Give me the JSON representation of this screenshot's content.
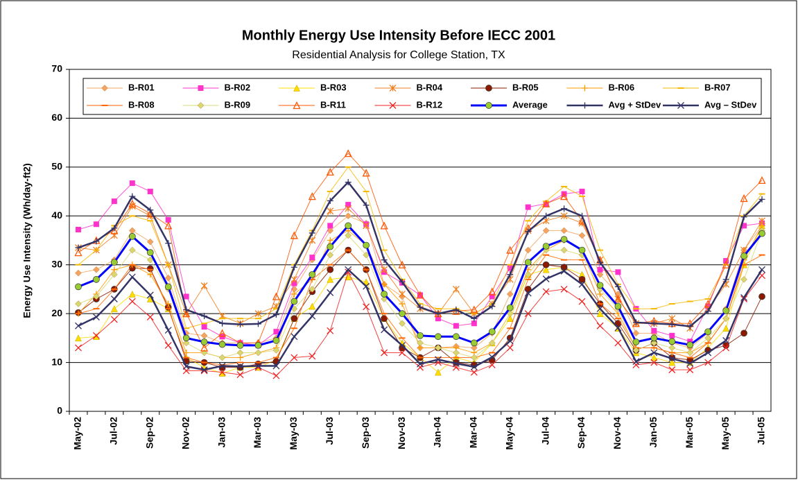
{
  "chart_data": {
    "type": "line",
    "title": "Monthly Energy Use Intensity Before  IECC 2001",
    "subtitle": "Residential Analysis for College Station, TX",
    "y_label": "Energy Use Intensity (Wh/day-ft2)",
    "categories": [
      "May-02",
      null,
      "Jul-02",
      null,
      "Sep-02",
      null,
      "Nov-02",
      null,
      "Jan-03",
      null,
      "Mar-03",
      null,
      "May-03",
      null,
      "Jul-03",
      null,
      "Sep-03",
      null,
      "Nov-03",
      null,
      "Jan-04",
      null,
      "Mar-04",
      null,
      "May-04",
      null,
      "Jul-04",
      null,
      "Sep-04",
      null,
      "Nov-04",
      null,
      "Jan-05",
      null,
      "Mar-05",
      null,
      "May-05",
      null,
      "Jul-05"
    ],
    "ylim": [
      0,
      70
    ],
    "yticks": [
      0,
      10,
      20,
      30,
      40,
      50,
      60,
      70
    ],
    "grid": true,
    "series": [
      {
        "name": "B-R01",
        "color": "#f4a460",
        "marker": "diamond",
        "values": [
          28.3,
          29,
          31,
          37,
          34.7,
          27.3,
          16,
          15.5,
          14,
          14,
          14,
          15,
          25,
          31,
          37,
          40,
          38.5,
          26,
          23.5,
          13,
          13,
          13.3,
          13,
          16,
          24,
          33,
          37,
          37,
          36,
          28,
          24,
          16,
          16,
          14,
          13,
          16,
          21,
          33,
          38
        ]
      },
      {
        "name": "B-R02",
        "color": "#ff33cc",
        "marker": "square",
        "values": [
          37.2,
          38.3,
          43,
          46.7,
          45,
          39.2,
          23.5,
          17.3,
          15.3,
          14,
          13.5,
          16.3,
          26.2,
          31.5,
          38,
          42.3,
          38.3,
          28.5,
          26.3,
          23.8,
          19,
          17.5,
          18,
          23.5,
          29.3,
          41.8,
          42.5,
          44.5,
          45,
          29,
          28.5,
          21,
          16.5,
          15.5,
          14.3,
          21.5,
          30.8,
          38,
          38.5
        ]
      },
      {
        "name": "B-R03",
        "color": "#ffdd00",
        "marker": "triangle",
        "values": [
          15,
          15.3,
          21,
          24,
          23,
          21,
          11,
          9,
          7.8,
          9,
          9,
          10.5,
          19,
          21.5,
          27,
          27.5,
          26.5,
          19,
          14,
          11,
          8,
          11,
          10,
          14,
          19,
          28,
          29,
          29.5,
          28,
          20,
          17,
          12,
          11,
          10,
          10,
          13,
          17,
          30,
          38
        ]
      },
      {
        "name": "B-R04",
        "color": "#f08020",
        "marker": "asterisk",
        "values": [
          33.5,
          33,
          36,
          42,
          40,
          30,
          20,
          25.7,
          19.5,
          18,
          20,
          21.5,
          27,
          35,
          41,
          41.5,
          38,
          29,
          24,
          21,
          20,
          25,
          20,
          22,
          27,
          37,
          39,
          40,
          38.5,
          31,
          23,
          18,
          18,
          19,
          17,
          21,
          26,
          33,
          39
        ]
      },
      {
        "name": "B-R05",
        "color": "#8b1a00",
        "marker": "circle",
        "values": [
          20.2,
          23,
          25,
          29.3,
          29.2,
          21.3,
          10.3,
          10,
          9,
          9,
          9.7,
          10.2,
          19,
          24.5,
          29,
          33,
          29,
          19,
          13,
          11,
          13,
          10,
          9.5,
          10.5,
          15,
          25,
          30,
          29.5,
          27,
          22,
          18,
          12.5,
          14,
          11,
          10.5,
          12.5,
          13.5,
          16,
          23.5
        ]
      },
      {
        "name": "B-R06",
        "color": "#ff9900",
        "marker": "plus",
        "values": [
          20,
          24,
          29,
          30,
          28,
          22,
          12,
          12,
          11,
          11,
          12,
          13,
          24,
          27,
          35,
          37,
          34,
          26,
          22,
          13,
          13,
          13,
          12,
          14,
          20,
          29,
          33,
          35,
          33,
          24,
          20,
          13,
          13,
          12,
          12,
          14,
          19,
          31,
          38
        ]
      },
      {
        "name": "B-R07",
        "color": "#f5b800",
        "marker": "dash",
        "values": [
          30,
          33,
          38,
          40,
          39,
          30,
          17,
          18,
          19,
          19,
          19,
          21,
          30,
          37,
          45,
          50,
          45,
          33,
          27,
          22,
          21,
          21,
          20,
          22,
          30,
          39,
          43,
          46,
          44,
          33,
          26,
          21,
          21,
          22,
          22.5,
          23,
          30,
          40,
          44.5
        ]
      },
      {
        "name": "B-R08",
        "color": "#ff6600",
        "marker": "dash",
        "values": [
          20,
          21,
          25,
          30,
          29,
          21,
          11,
          10,
          9.5,
          10,
          10,
          11,
          17,
          27,
          30,
          33,
          29,
          20,
          15,
          11,
          11,
          11,
          11,
          12,
          17,
          27,
          32,
          31,
          31,
          22,
          19,
          13,
          13,
          12,
          11,
          14,
          19,
          30,
          32
        ]
      },
      {
        "name": "B-R09",
        "color": "#d8d870",
        "marker": "diamond",
        "values": [
          22,
          23.5,
          28,
          33,
          31,
          25,
          14,
          12,
          11,
          12,
          12,
          12.5,
          21,
          25,
          32,
          36,
          32,
          23,
          18,
          14,
          13,
          12,
          11,
          14,
          20,
          28,
          33,
          33,
          32,
          25,
          21,
          12.5,
          14,
          13,
          12,
          15,
          19,
          27,
          37
        ]
      },
      {
        "name": "B-R11",
        "color": "#ff5500",
        "marker": "triangle-open",
        "values": [
          32.5,
          35,
          37,
          42.5,
          40.5,
          38,
          20,
          13,
          16,
          14,
          14,
          23.5,
          36,
          44,
          49,
          52.8,
          48.8,
          38,
          30,
          23.8,
          20,
          20.5,
          20.8,
          24.5,
          33,
          37.5,
          42.5,
          44,
          39,
          31,
          23,
          18,
          18.5,
          18,
          18,
          22,
          30,
          43.6,
          47.3
        ]
      },
      {
        "name": "B-R12",
        "color": "#ee2222",
        "marker": "x",
        "values": [
          13,
          15.5,
          18.8,
          22.5,
          19.3,
          13.5,
          8.3,
          8.3,
          8,
          7.5,
          9,
          7.3,
          11,
          11.3,
          16.5,
          28.5,
          21.4,
          12,
          12,
          9,
          10,
          9,
          8,
          9.5,
          13,
          20,
          24.5,
          25,
          22.5,
          17.5,
          14,
          9.5,
          10,
          8.5,
          8.5,
          10,
          13,
          23,
          27.8
        ]
      },
      {
        "name": "Average",
        "color": "#0000ff",
        "marker": "circle",
        "marker_color": "#99cc33",
        "values": [
          25.5,
          27,
          30.5,
          35.8,
          32.5,
          25.5,
          15,
          14.2,
          13.7,
          13.5,
          13.5,
          14.5,
          22.5,
          28,
          33.7,
          38,
          34,
          24,
          20,
          15.5,
          15.3,
          15.3,
          14,
          16.3,
          21.2,
          30.5,
          33.8,
          35.2,
          33,
          25.8,
          21.5,
          14.2,
          15,
          14.3,
          13.6,
          16.3,
          20.6,
          31.8,
          36.4
        ]
      },
      {
        "name": "Avg + StDev",
        "color": "#333366",
        "marker": "plus",
        "values": [
          33.5,
          34.8,
          37.5,
          44,
          41.2,
          34.4,
          20.8,
          19.5,
          18,
          17.8,
          17.9,
          19.8,
          29.5,
          36.5,
          43.1,
          46.9,
          42.2,
          31,
          26.5,
          21.3,
          20,
          20.8,
          19,
          21.5,
          28,
          36.8,
          40,
          41.5,
          40,
          30.5,
          25.5,
          18.2,
          18,
          17.8,
          17.4,
          20.5,
          27,
          39.8,
          43.4
        ]
      },
      {
        "name": "Avg – StDev",
        "color": "#333366",
        "marker": "x",
        "values": [
          17.5,
          19.3,
          23,
          27.5,
          23.8,
          16.6,
          9.2,
          8.5,
          9.3,
          9.2,
          9.3,
          9.3,
          15.3,
          19.5,
          24.3,
          29,
          25.6,
          16.7,
          13.5,
          9.7,
          10.6,
          9.8,
          9.1,
          11.1,
          14.4,
          24.2,
          27.1,
          28.7,
          26,
          21,
          17.1,
          10.2,
          12,
          10.8,
          9.8,
          12,
          14.5,
          23.3,
          29
        ]
      }
    ]
  }
}
